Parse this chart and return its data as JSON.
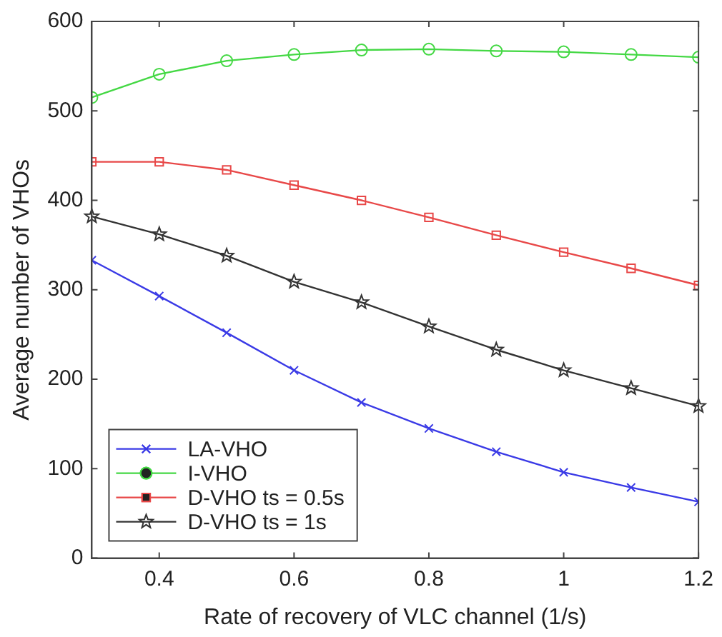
{
  "chart_data": {
    "type": "line",
    "xlabel": "Rate of recovery of VLC channel (1/s)",
    "ylabel": "Average number of VHOs",
    "x": [
      0.3,
      0.4,
      0.5,
      0.6,
      0.7,
      0.8,
      0.9,
      1,
      1.1,
      1.2
    ],
    "series": [
      {
        "name": "LA-VHO",
        "color": "#3a3ae6",
        "marker": "cross",
        "values": [
          333,
          293,
          252,
          210,
          174,
          145,
          119,
          96,
          79,
          63
        ]
      },
      {
        "name": "I-VHO",
        "color": "#44d844",
        "marker": "circle",
        "values": [
          515,
          541,
          556,
          563,
          568,
          569,
          567,
          566,
          563,
          560
        ]
      },
      {
        "name": "D-VHO ts = 0.5s",
        "color": "#e84848",
        "marker": "square",
        "values": [
          443,
          443,
          434,
          417,
          400,
          381,
          361,
          342,
          324,
          305
        ]
      },
      {
        "name": "D-VHO ts = 1s",
        "color": "#333333",
        "marker": "star",
        "values": [
          382,
          362,
          338,
          309,
          286,
          259,
          233,
          210,
          190,
          170
        ]
      }
    ],
    "xlim": [
      0.3,
      1.2
    ],
    "xticks": [
      0.4,
      0.6,
      0.8,
      1,
      1.2
    ],
    "ylim": [
      0,
      600
    ],
    "yticks": [
      0,
      100,
      200,
      300,
      400,
      500,
      600
    ],
    "grid": false,
    "legend": "bottom left",
    "line_style": "solid"
  }
}
